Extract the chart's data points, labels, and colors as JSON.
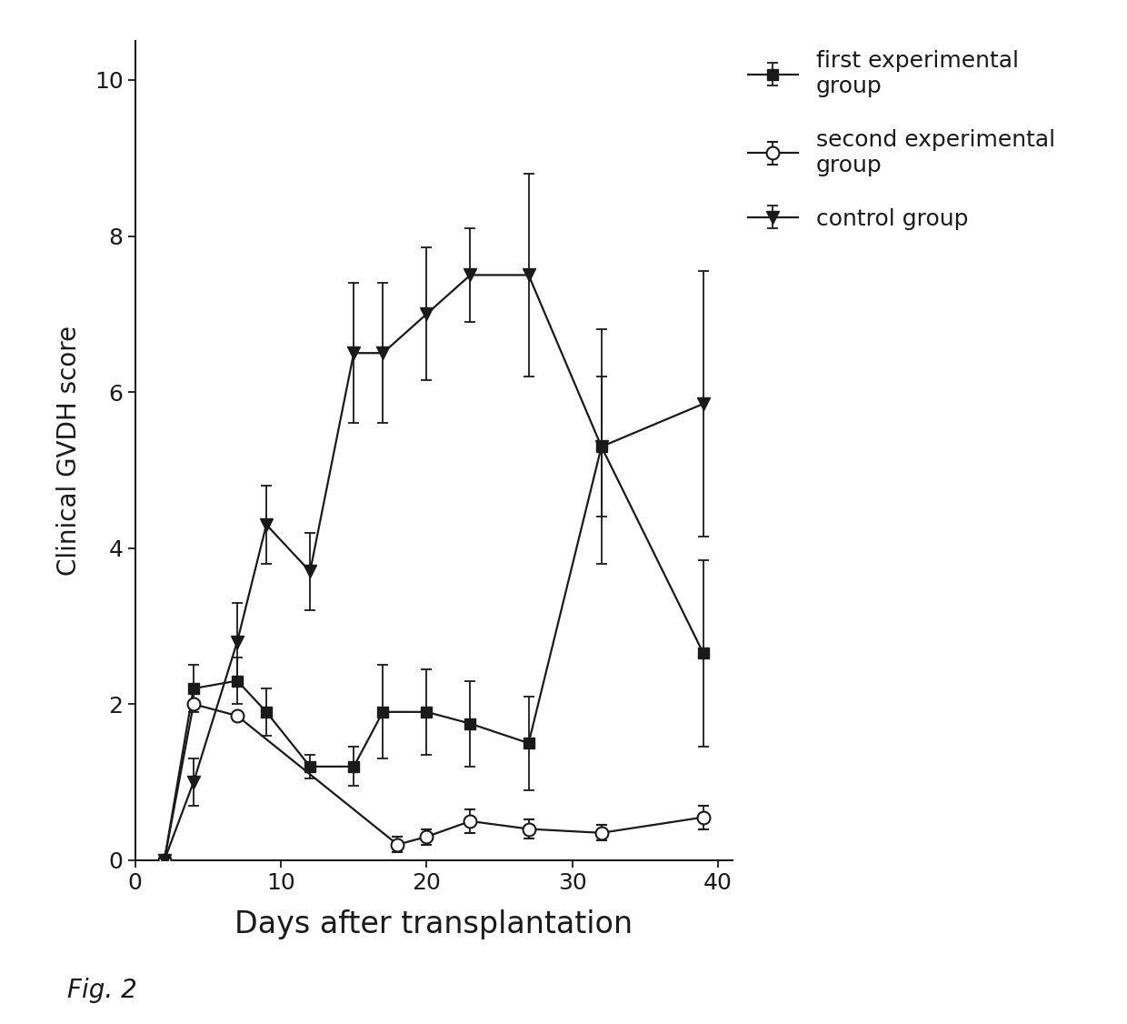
{
  "first_exp": {
    "x": [
      2,
      4,
      7,
      9,
      12,
      15,
      17,
      20,
      23,
      27,
      32,
      39
    ],
    "y": [
      0,
      2.2,
      2.3,
      1.9,
      1.2,
      1.2,
      1.9,
      1.9,
      1.75,
      1.5,
      5.3,
      2.65
    ],
    "yerr": [
      0,
      0.3,
      0.3,
      0.3,
      0.15,
      0.25,
      0.6,
      0.55,
      0.55,
      0.6,
      0.9,
      1.2
    ]
  },
  "second_exp": {
    "x": [
      2,
      4,
      7,
      18,
      20,
      23,
      27,
      32,
      39
    ],
    "y": [
      0,
      2.0,
      1.85,
      0.2,
      0.3,
      0.5,
      0.4,
      0.35,
      0.55
    ],
    "yerr": [
      0,
      0.0,
      0.0,
      0.1,
      0.1,
      0.15,
      0.12,
      0.1,
      0.15
    ]
  },
  "control": {
    "x": [
      2,
      4,
      7,
      9,
      12,
      15,
      17,
      20,
      23,
      27,
      32,
      39
    ],
    "y": [
      0,
      1.0,
      2.8,
      4.3,
      3.7,
      6.5,
      6.5,
      7.0,
      7.5,
      7.5,
      5.3,
      5.85
    ],
    "yerr": [
      0,
      0.3,
      0.5,
      0.5,
      0.5,
      0.9,
      0.9,
      0.85,
      0.6,
      1.3,
      1.5,
      1.7
    ]
  },
  "xlabel": "Days after transplantation",
  "ylabel": "Clinical GVDH score",
  "xlim": [
    0,
    41
  ],
  "ylim": [
    0,
    10.5
  ],
  "xticks": [
    0,
    10,
    20,
    30,
    40
  ],
  "yticks": [
    0,
    2,
    4,
    6,
    8,
    10
  ],
  "legend_labels": [
    "first experimental\ngroup",
    "second experimental\ngroup",
    "control group"
  ],
  "fig_label": "Fig. 2",
  "background_color": "#ffffff",
  "line_color": "#1a1a1a",
  "capsize": 4,
  "linewidth": 1.6,
  "marker_size": 8
}
